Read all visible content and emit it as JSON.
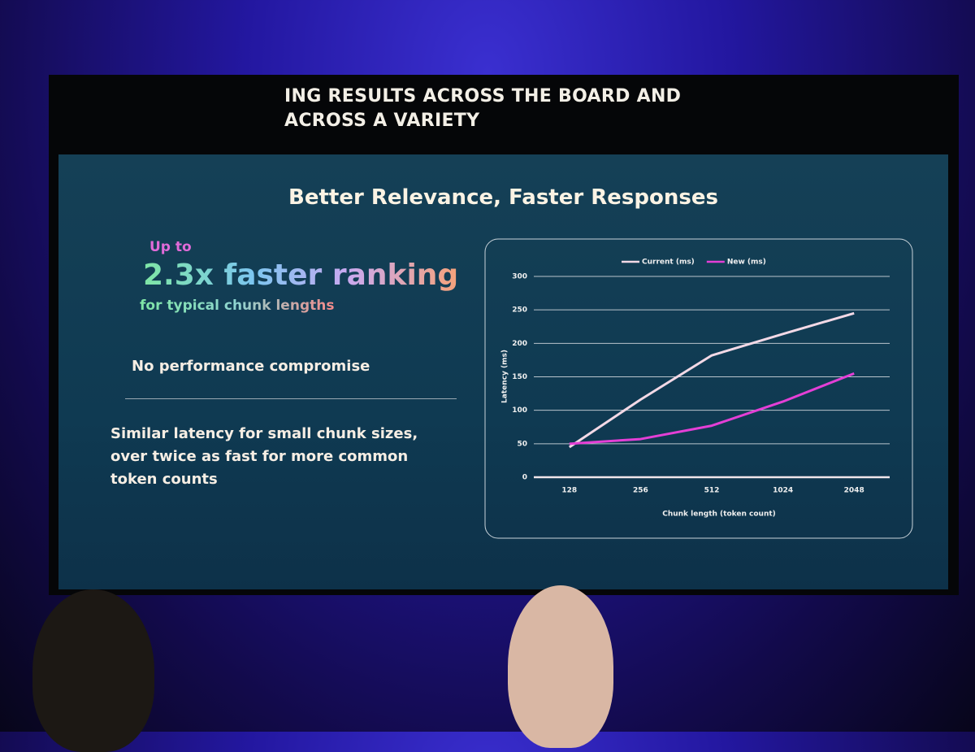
{
  "header": {
    "lines": [
      "ING RESULTS ACROSS THE BOARD AND",
      "ACROSS A VARIETY"
    ]
  },
  "slide": {
    "title": "Better Relevance, Faster Responses",
    "up_to": "Up to",
    "headline": "2.3x faster ranking",
    "headline_sub": "for typical chunk lengths",
    "point_1": "No performance compromise",
    "point_2": "Similar latency for small chunk sizes, over twice as fast for more common token counts"
  },
  "chart_data": {
    "type": "line",
    "x_label": "Chunk length (token count)",
    "y_label": "Latency (ms)",
    "categories": [
      "128",
      "256",
      "512",
      "1024",
      "2048"
    ],
    "series": [
      {
        "name": "Current (ms)",
        "color": "#f3d9e6",
        "values": [
          45,
          116,
          182,
          214,
          245
        ]
      },
      {
        "name": "New (ms)",
        "color": "#e43fd6",
        "values": [
          50,
          57,
          77,
          113,
          155
        ]
      }
    ],
    "ylim": [
      0,
      300
    ],
    "yticks": [
      0,
      50,
      100,
      150,
      200,
      250,
      300
    ],
    "grid": true,
    "legend": "top"
  }
}
